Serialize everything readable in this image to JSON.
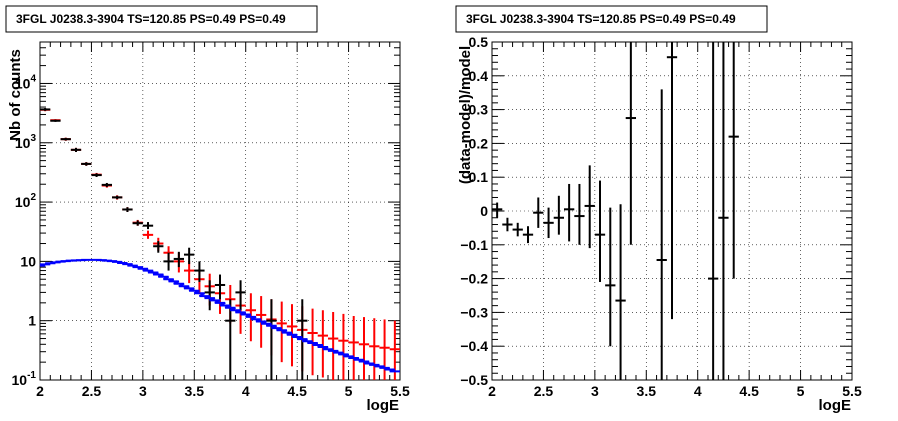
{
  "chart_data": [
    {
      "type": "scatter",
      "title": "3FGL J0238.3-3904 TS=120.85 PS=0.49 PS=0.49",
      "xlabel": "logE",
      "ylabel": "Nb of counts",
      "xlim": [
        2,
        5.5
      ],
      "ylim": [
        0.1,
        50000
      ],
      "log_y": true,
      "grid": true,
      "x_ticks": [
        "2",
        "2.5",
        "3",
        "3.5",
        "4",
        "4.5",
        "5",
        "5.5"
      ],
      "y_ticks": [
        "10-1",
        "1",
        "10",
        "102",
        "103",
        "104"
      ],
      "y_tick_values": [
        0.1,
        1,
        10,
        100,
        1000,
        10000
      ],
      "series": [
        {
          "color": "#ff0000",
          "x": [
            2.05,
            2.15,
            2.25,
            2.35,
            2.45,
            2.55,
            2.65,
            2.75,
            2.85,
            2.95,
            3.05,
            3.15,
            3.25,
            3.35,
            3.45,
            3.55,
            3.65,
            3.75,
            3.85,
            3.95,
            4.05,
            4.15,
            4.25,
            4.35,
            4.45,
            4.55,
            4.65,
            4.75,
            4.85,
            4.95,
            5.05,
            5.15,
            5.25,
            5.35,
            5.45
          ],
          "y": [
            3600,
            2400,
            1150,
            760,
            440,
            290,
            190,
            120,
            75,
            45,
            28,
            20,
            14,
            10,
            7,
            5,
            3.8,
            2.9,
            2.3,
            1.8,
            1.5,
            1.25,
            1.05,
            0.9,
            0.8,
            0.7,
            0.62,
            0.56,
            0.5,
            0.46,
            0.43,
            0.4,
            0.37,
            0.35,
            0.33
          ],
          "ylo": [
            3400,
            2300,
            1080,
            700,
            410,
            270,
            175,
            110,
            68,
            40,
            24,
            15,
            10,
            6.5,
            4.3,
            2.8,
            1.8,
            1.3,
            0.9,
            0.6,
            0.45,
            0.35,
            0.26,
            0.2,
            0.17,
            0.14,
            0.12,
            0.11,
            0.1,
            0.1,
            0.1,
            0.1,
            0.1,
            0.1,
            0.1
          ],
          "yhi": [
            3800,
            2500,
            1220,
            820,
            470,
            310,
            205,
            130,
            82,
            50,
            33,
            25,
            18,
            14,
            10,
            7.5,
            6.2,
            4.8,
            4,
            3.3,
            2.9,
            2.6,
            2.3,
            2.1,
            1.9,
            1.75,
            1.6,
            1.5,
            1.4,
            1.3,
            1.2,
            1.15,
            1.1,
            1.05,
            1.0
          ]
        },
        {
          "color": "#000000",
          "x": [
            2.05,
            2.15,
            2.25,
            2.35,
            2.45,
            2.55,
            2.65,
            2.75,
            2.85,
            2.95,
            3.05,
            3.15,
            3.25,
            3.35,
            3.45,
            3.55,
            3.65,
            3.75,
            3.85,
            3.95,
            4.25,
            4.55
          ],
          "y": [
            3650,
            2350,
            1150,
            760,
            440,
            285,
            195,
            120,
            75,
            44,
            40,
            18,
            10,
            11,
            13,
            7,
            3,
            4,
            1,
            3,
            1,
            1
          ],
          "ylo": [
            3450,
            2250,
            1090,
            700,
            410,
            265,
            180,
            112,
            68,
            40,
            35,
            14,
            7,
            8,
            9,
            4.5,
            1.5,
            2.3,
            0.1,
            1.5,
            0.1,
            0.1
          ],
          "yhi": [
            3850,
            2450,
            1210,
            820,
            470,
            305,
            210,
            128,
            82,
            49,
            46,
            22,
            14,
            14.5,
            17,
            10,
            4.8,
            6,
            2.3,
            4.8,
            2.3,
            2.3
          ]
        },
        {
          "color": "#0000ff",
          "line": "step",
          "x": [
            2.0,
            2.05,
            2.1,
            2.15,
            2.2,
            2.25,
            2.3,
            2.35,
            2.4,
            2.45,
            2.5,
            2.55,
            2.6,
            2.65,
            2.7,
            2.75,
            2.8,
            2.85,
            2.9,
            2.95,
            3.0,
            3.05,
            3.1,
            3.15,
            3.2,
            3.25,
            3.3,
            3.35,
            3.4,
            3.45,
            3.5,
            3.55,
            3.6,
            3.65,
            3.7,
            3.75,
            3.8,
            3.85,
            3.9,
            3.95,
            4.0,
            4.05,
            4.1,
            4.15,
            4.2,
            4.25,
            4.3,
            4.35,
            4.4,
            4.45,
            4.5,
            4.55,
            4.6,
            4.65,
            4.7,
            4.75,
            4.8,
            4.85,
            4.9,
            4.95,
            5.0,
            5.05,
            5.1,
            5.15,
            5.2,
            5.25,
            5.3,
            5.35,
            5.4,
            5.45
          ],
          "y": [
            8.5,
            8.9,
            9.3,
            9.6,
            9.9,
            10.1,
            10.3,
            10.4,
            10.5,
            10.6,
            10.6,
            10.6,
            10.5,
            10.3,
            10.1,
            9.8,
            9.4,
            9.0,
            8.5,
            8.0,
            7.5,
            7.0,
            6.5,
            6.0,
            5.5,
            5.0,
            4.6,
            4.2,
            3.8,
            3.5,
            3.2,
            2.9,
            2.6,
            2.4,
            2.2,
            2.0,
            1.8,
            1.65,
            1.5,
            1.38,
            1.27,
            1.16,
            1.06,
            0.97,
            0.89,
            0.82,
            0.75,
            0.69,
            0.63,
            0.58,
            0.53,
            0.49,
            0.45,
            0.42,
            0.39,
            0.36,
            0.33,
            0.31,
            0.29,
            0.27,
            0.25,
            0.235,
            0.22,
            0.205,
            0.19,
            0.18,
            0.17,
            0.16,
            0.15,
            0.14
          ]
        }
      ]
    },
    {
      "type": "scatter",
      "title": "3FGL J0238.3-3904 TS=120.85 PS=0.49 PS=0.49",
      "xlabel": "logE",
      "ylabel": "(data-model)/model",
      "xlim": [
        2,
        5.5
      ],
      "ylim": [
        -0.5,
        0.5
      ],
      "grid": true,
      "x_ticks": [
        "2",
        "2.5",
        "3",
        "3.5",
        "4",
        "4.5",
        "5",
        "5.5"
      ],
      "y_ticks": [
        "−0.5",
        "−0.4",
        "−0.3",
        "−0.2",
        "−0.1",
        "0",
        "0.1",
        "0.2",
        "0.3",
        "0.4",
        "0.5"
      ],
      "y_tick_values": [
        -0.5,
        -0.4,
        -0.3,
        -0.2,
        -0.1,
        0,
        0.1,
        0.2,
        0.3,
        0.4,
        0.5
      ],
      "series": [
        {
          "color": "#000000",
          "x": [
            2.05,
            2.15,
            2.25,
            2.35,
            2.45,
            2.55,
            2.65,
            2.75,
            2.85,
            2.95,
            3.05,
            3.15,
            3.25,
            3.35,
            3.65,
            3.75,
            4.15,
            4.25,
            4.35
          ],
          "y": [
            0.005,
            -0.04,
            -0.055,
            -0.07,
            -0.005,
            -0.035,
            -0.02,
            0.005,
            -0.015,
            0.015,
            -0.07,
            -0.22,
            -0.265,
            0.275,
            -0.145,
            0.455,
            -0.2,
            -0.02,
            0.22
          ],
          "ylo": [
            -0.02,
            -0.06,
            -0.075,
            -0.095,
            -0.05,
            -0.08,
            -0.07,
            -0.09,
            -0.1,
            -0.11,
            -0.21,
            -0.4,
            -0.5,
            -0.1,
            -0.5,
            -0.32,
            -0.5,
            -0.5,
            -0.2
          ],
          "yhi": [
            0.025,
            -0.02,
            -0.035,
            -0.045,
            0.04,
            0.01,
            0.045,
            0.08,
            0.08,
            0.135,
            0.09,
            0.01,
            0.02,
            0.5,
            0.36,
            0.5,
            0.5,
            0.5,
            0.5
          ]
        }
      ]
    }
  ]
}
